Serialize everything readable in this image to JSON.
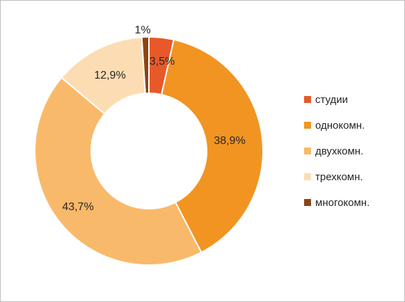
{
  "chart_data": {
    "type": "pie",
    "subtype": "doughnut",
    "title": "",
    "legend_position": "right",
    "series": [
      {
        "name": "студии",
        "value": 3.5,
        "label": "3,5%",
        "color": "#E8592A"
      },
      {
        "name": "однокомн.",
        "value": 38.9,
        "label": "38,9%",
        "color": "#F29422"
      },
      {
        "name": "двухкомн.",
        "value": 43.7,
        "label": "43,7%",
        "color": "#F9B96A"
      },
      {
        "name": "трехкомн.",
        "value": 12.9,
        "label": "12,9%",
        "color": "#FCDDB3"
      },
      {
        "name": "многокомн.",
        "value": 1,
        "label": "1%",
        "color": "#8B4513"
      }
    ]
  }
}
